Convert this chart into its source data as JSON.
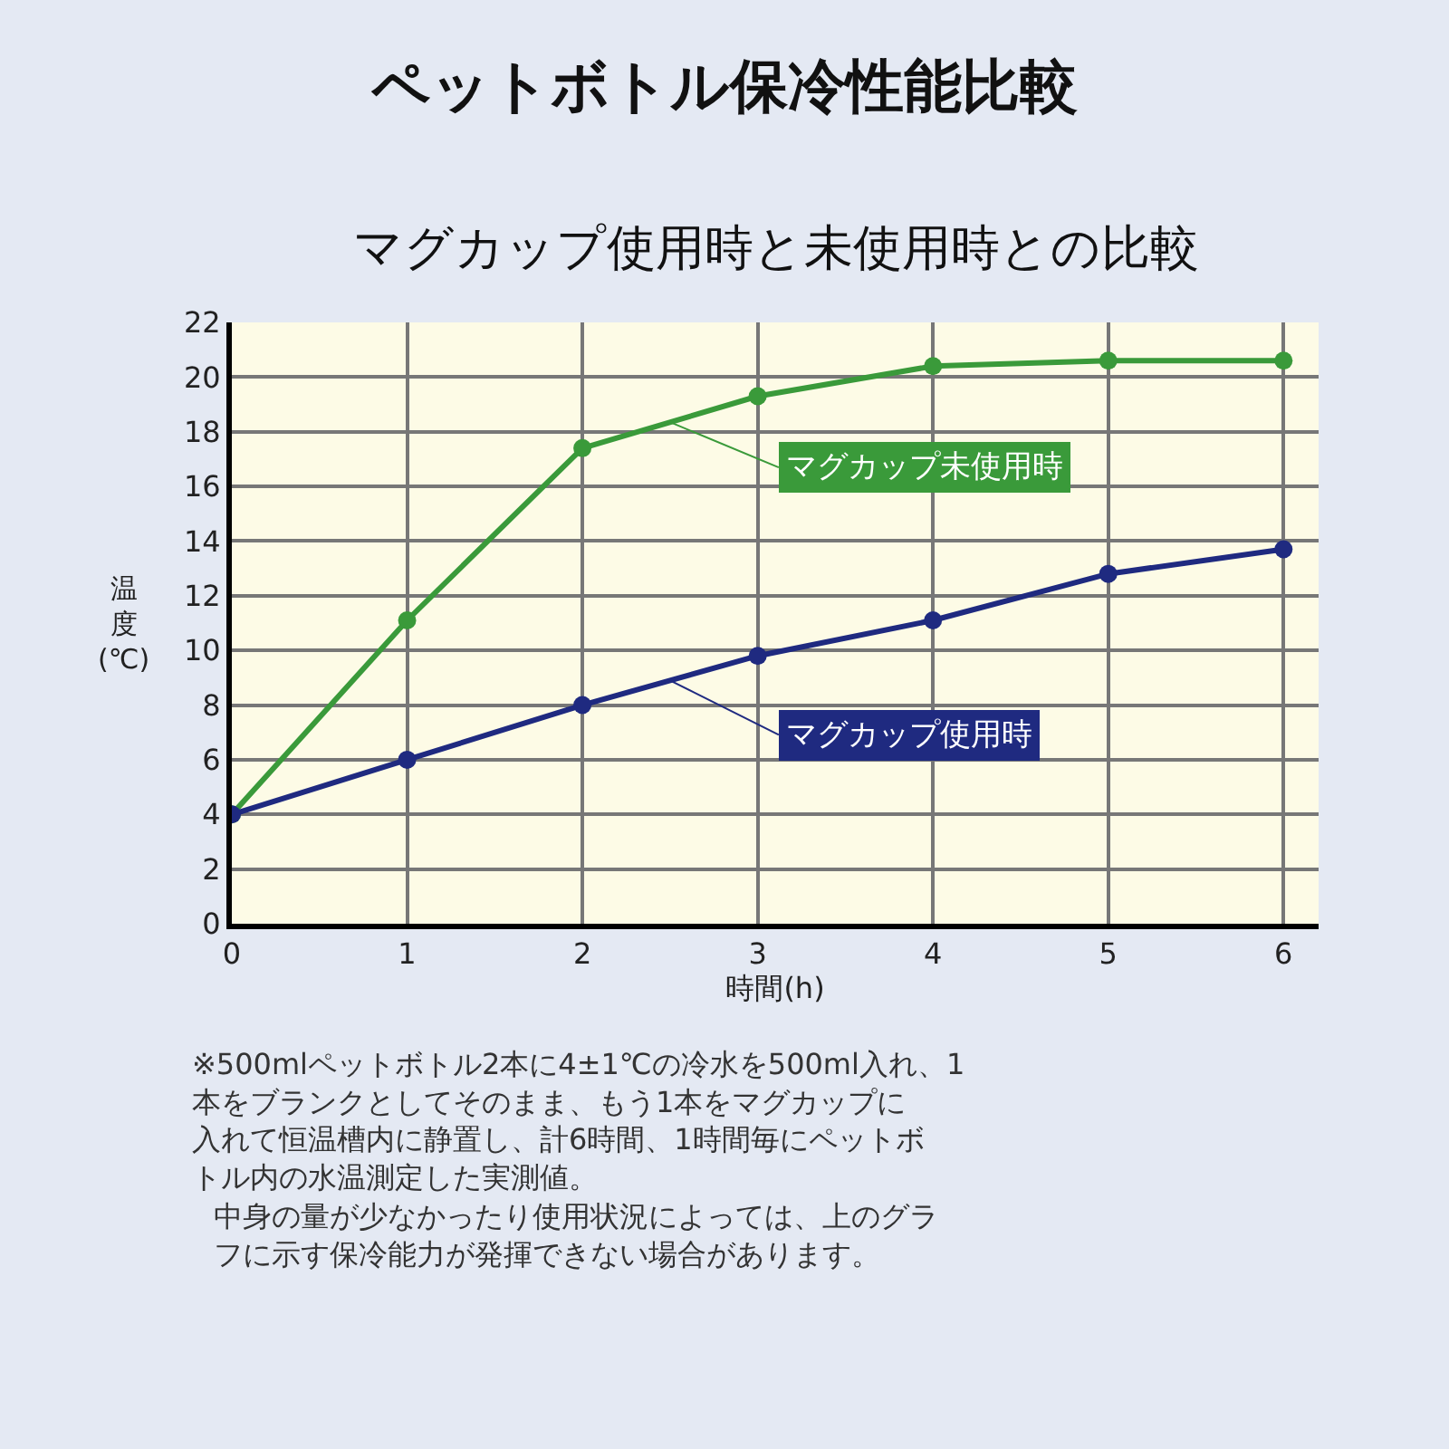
{
  "chart_data": {
    "type": "line",
    "title": "ペットボトル保冷性能比較",
    "subtitle": "マグカップ使用時と未使用時との比較",
    "xlabel": "時間(h)",
    "ylabel": "温度(℃)",
    "x": [
      0,
      1,
      2,
      3,
      4,
      5,
      6
    ],
    "series": [
      {
        "name": "マグカップ未使用時",
        "color": "#3a9a3a",
        "values": [
          4,
          11.1,
          17.4,
          19.3,
          20.4,
          20.6,
          20.6
        ]
      },
      {
        "name": "マグカップ使用時",
        "color": "#1f2a80",
        "values": [
          4,
          6,
          8,
          9.8,
          11.1,
          12.8,
          13.7
        ]
      }
    ],
    "xlim": [
      0,
      6.2
    ],
    "xticks": [
      0,
      1,
      2,
      3,
      4,
      5,
      6
    ],
    "ylim": [
      0,
      22
    ],
    "yticks": [
      0,
      2,
      4,
      6,
      8,
      10,
      12,
      14,
      16,
      18,
      20,
      22
    ],
    "grid": true,
    "legend": false,
    "marker": "circle",
    "line_style": "solid",
    "annotations": [
      "※500mlペットボトル2本に4±1℃の冷水を500ml入れ、1本をブランクとしてそのまま、もう1本をマグカップに入れて恒温槽内に静置し、計6時間、1時間毎にペットボトル内の水温測定した実測値。",
      "中身の量が少なかったり使用状況によっては、上のグラフに示す保冷能力が発揮できない場合があります。"
    ]
  }
}
